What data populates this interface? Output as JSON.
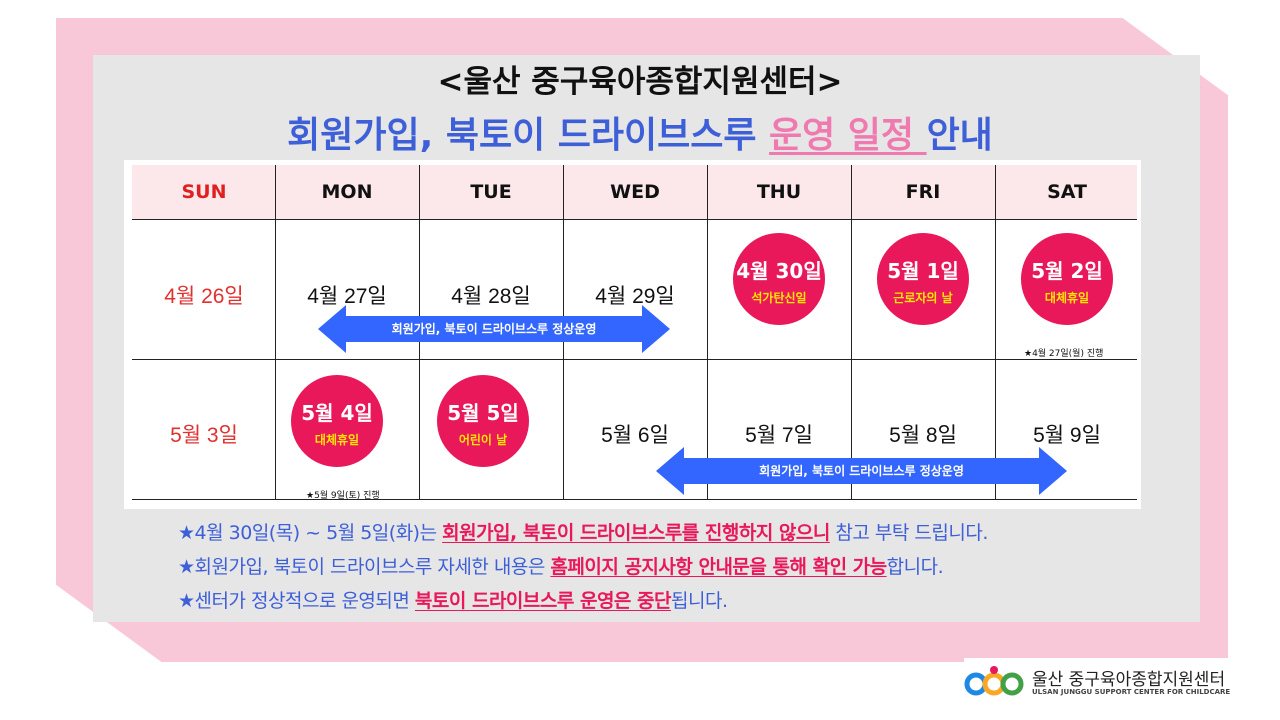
{
  "header": {
    "title": "<울산 중구육아종합지원센터>",
    "subtitle_prefix": "회원가입, 북토이 드라이브스루 ",
    "subtitle_highlight": "운영 일정 ",
    "subtitle_suffix": "안내"
  },
  "calendar": {
    "days": [
      "SUN",
      "MON",
      "TUE",
      "WED",
      "THU",
      "FRI",
      "SAT"
    ],
    "week1": {
      "sun": "4월 26일",
      "mon": "4월 27일",
      "tue": "4월 28일",
      "wed": "4월 29일",
      "thu": {
        "date": "4월 30일",
        "label": "석가탄신일"
      },
      "fri": {
        "date": "5월 1일",
        "label": "근로자의 날"
      },
      "sat": {
        "date": "5월 2일",
        "label": "대체휴일",
        "note": "★4월 27일(월) 진행"
      },
      "arrow_label": "회원가입, 북토이 드라이브스루 정상운영"
    },
    "week2": {
      "sun": "5월 3일",
      "mon": {
        "date": "5월 4일",
        "label": "대체휴일",
        "note": "★5월 9일(토) 진행"
      },
      "tue": {
        "date": "5월 5일",
        "label": "어린이 날"
      },
      "wed": "5월 6일",
      "thu": "5월 7일",
      "fri": "5월 8일",
      "sat": "5월 9일",
      "arrow_label": "회원가입, 북토이 드라이브스루 정상운영"
    }
  },
  "notes": [
    {
      "pre": "★4월 30일(목) ~ 5월 5일(화)는 ",
      "em": "회원가입, 북토이 드라이브스루를 진행하지 않으니",
      "post": " 참고 부탁 드립니다."
    },
    {
      "pre": "★회원가입, 북토이 드라이브스루 자세한 내용은 ",
      "em": "홈페이지 공지사항 안내문을 통해 확인 가능",
      "post": "합니다."
    },
    {
      "pre": "★센터가 정상적으로 운영되면 ",
      "em": "북토이 드라이브스루 운영은 중단",
      "post": "됩니다."
    }
  ],
  "logo": {
    "name_ko": "울산 중구육아종합지원센터",
    "name_en": "ULSAN JUNGGU SUPPORT CENTER FOR CHILDCARE"
  },
  "colors": {
    "frame_pink": "#f8c7d8",
    "title_blue": "#3d5fd8",
    "holiday_pink": "#e8185a",
    "arrow_blue": "#3366ff",
    "sunday_red": "#e02020"
  }
}
